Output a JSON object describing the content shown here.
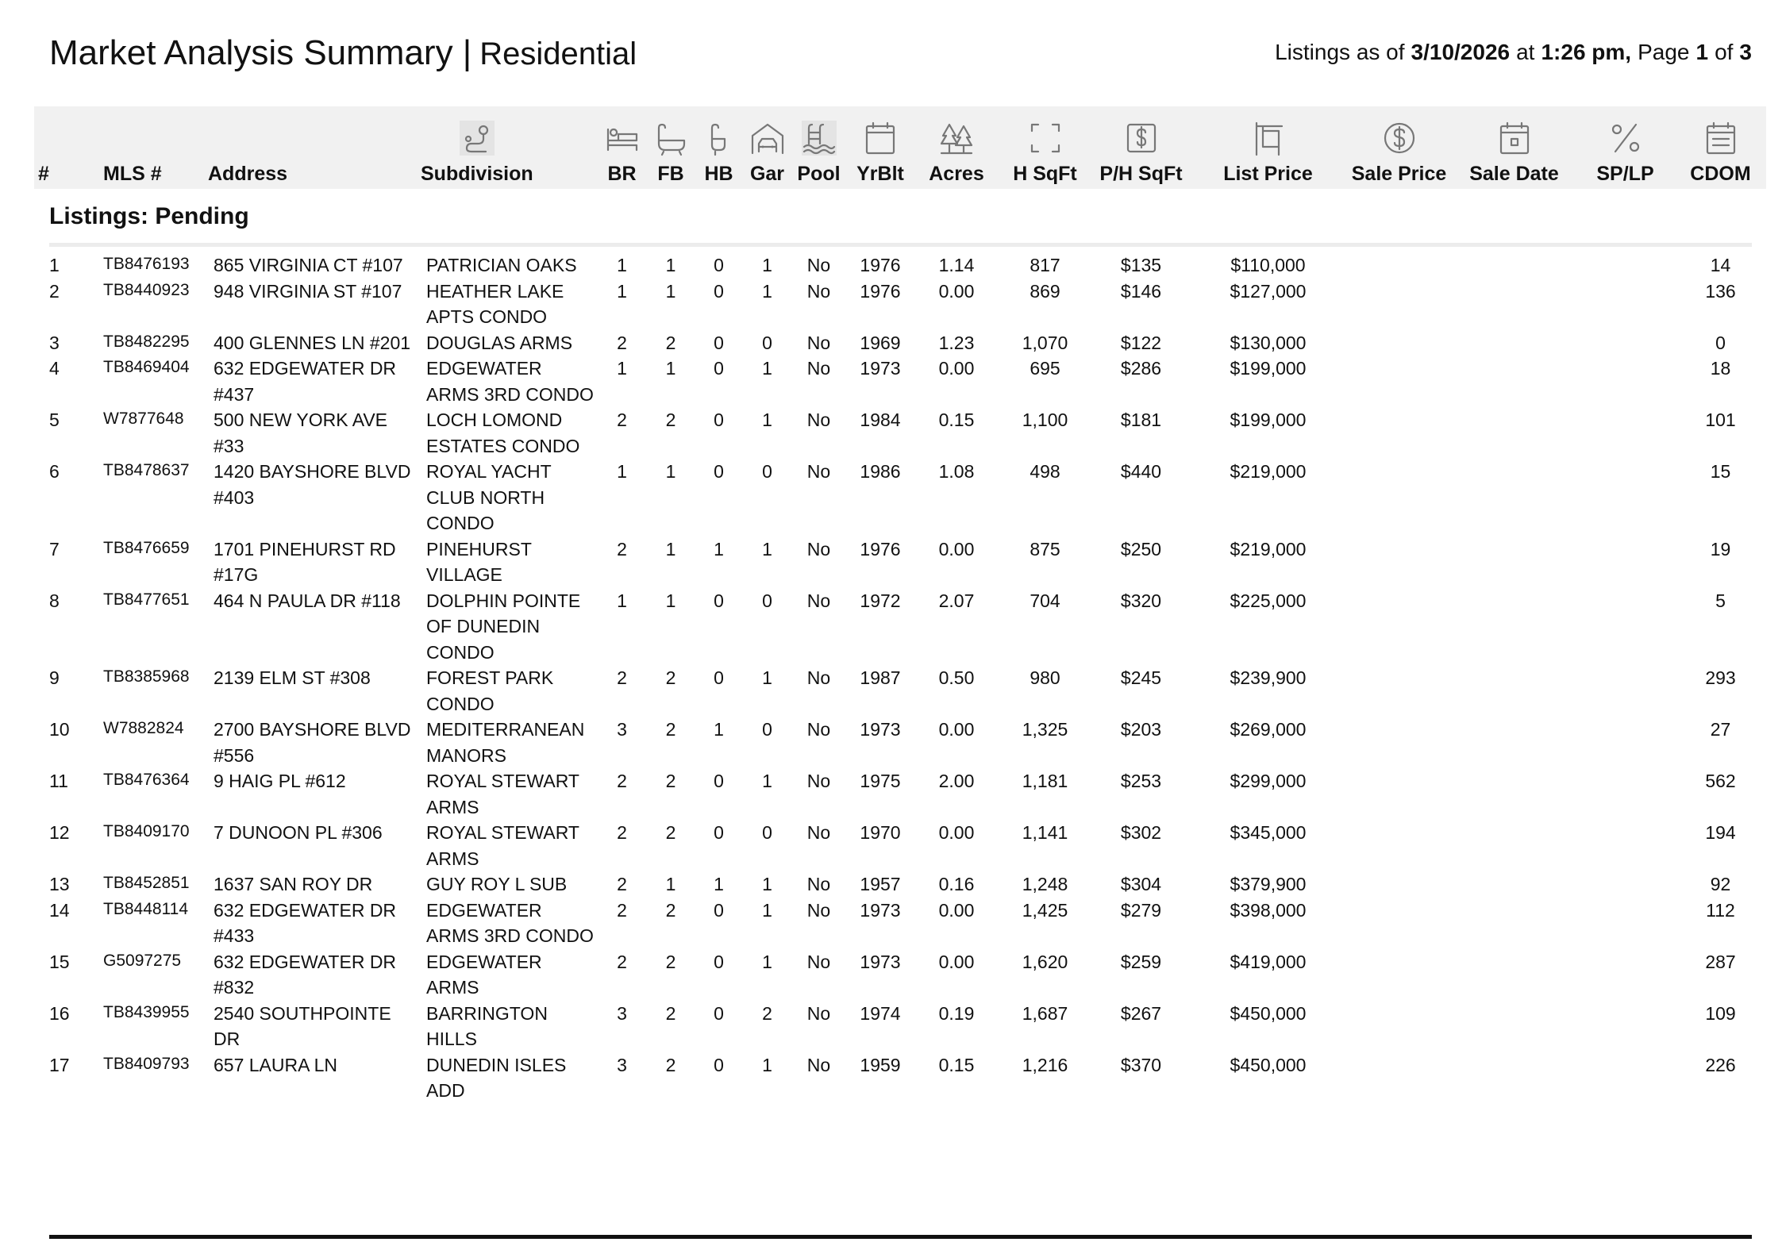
{
  "header": {
    "title": "Market Analysis Summary |",
    "subtitle": "Residential",
    "status": [
      "Listings as of",
      "3/10/2026",
      "at",
      "1:26 pm,",
      "Page",
      "1",
      "of",
      "3"
    ],
    "status_bold": [
      false,
      true,
      false,
      true,
      false,
      true,
      false,
      true
    ]
  },
  "table": {
    "columns": [
      "#",
      "MLS #",
      "Address",
      "Subdivision",
      "BR",
      "FB",
      "HB",
      "Gar",
      "Pool",
      "YrBlt",
      "Acres",
      "H SqFt",
      "P/H SqFt",
      "List Price",
      "Sale Price",
      "Sale Date",
      "SP/LP",
      "CDOM"
    ],
    "section": "Listings: Pending",
    "rows": [
      [
        "1",
        "TB8476193",
        "865 VIRGINIA CT #107",
        "PATRICIAN OAKS",
        "1",
        "1",
        "0",
        "1",
        "No",
        "1976",
        "1.14",
        "817",
        "$135",
        "$110,000",
        "14"
      ],
      [
        "2",
        "TB8440923",
        "948 VIRGINIA ST #107",
        "HEATHER LAKE APTS CONDO",
        "1",
        "1",
        "0",
        "1",
        "No",
        "1976",
        "0.00",
        "869",
        "$146",
        "$127,000",
        "136"
      ],
      [
        "3",
        "TB8482295",
        "400 GLENNES LN #201",
        "DOUGLAS ARMS",
        "2",
        "2",
        "0",
        "0",
        "No",
        "1969",
        "1.23",
        "1,070",
        "$122",
        "$130,000",
        "0"
      ],
      [
        "4",
        "TB8469404",
        "632 EDGEWATER DR #437",
        "EDGEWATER ARMS 3RD CONDO",
        "1",
        "1",
        "0",
        "1",
        "No",
        "1973",
        "0.00",
        "695",
        "$286",
        "$199,000",
        "18"
      ],
      [
        "5",
        "W7877648",
        "500 NEW YORK AVE #33",
        "LOCH LOMOND ESTATES CONDO",
        "2",
        "2",
        "0",
        "1",
        "No",
        "1984",
        "0.15",
        "1,100",
        "$181",
        "$199,000",
        "101"
      ],
      [
        "6",
        "TB8478637",
        "1420 BAYSHORE BLVD #403",
        "ROYAL YACHT CLUB NORTH CONDO",
        "1",
        "1",
        "0",
        "0",
        "No",
        "1986",
        "1.08",
        "498",
        "$440",
        "$219,000",
        "15"
      ],
      [
        "7",
        "TB8476659",
        "1701 PINEHURST RD #17G",
        "PINEHURST VILLAGE",
        "2",
        "1",
        "1",
        "1",
        "No",
        "1976",
        "0.00",
        "875",
        "$250",
        "$219,000",
        "19"
      ],
      [
        "8",
        "TB8477651",
        "464 N PAULA DR #118",
        "DOLPHIN POINTE OF DUNEDIN CONDO",
        "1",
        "1",
        "0",
        "0",
        "No",
        "1972",
        "2.07",
        "704",
        "$320",
        "$225,000",
        "5"
      ],
      [
        "9",
        "TB8385968",
        "2139 ELM ST #308",
        "FOREST PARK CONDO",
        "2",
        "2",
        "0",
        "1",
        "No",
        "1987",
        "0.50",
        "980",
        "$245",
        "$239,900",
        "293"
      ],
      [
        "10",
        "W7882824",
        "2700 BAYSHORE BLVD #556",
        "MEDITERRANEAN MANORS",
        "3",
        "2",
        "1",
        "0",
        "No",
        "1973",
        "0.00",
        "1,325",
        "$203",
        "$269,000",
        "27"
      ],
      [
        "11",
        "TB8476364",
        "9 HAIG PL #612",
        "ROYAL STEWART ARMS",
        "2",
        "2",
        "0",
        "1",
        "No",
        "1975",
        "2.00",
        "1,181",
        "$253",
        "$299,000",
        "562"
      ],
      [
        "12",
        "TB8409170",
        "7 DUNOON PL #306",
        "ROYAL STEWART ARMS",
        "2",
        "2",
        "0",
        "0",
        "No",
        "1970",
        "0.00",
        "1,141",
        "$302",
        "$345,000",
        "194"
      ],
      [
        "13",
        "TB8452851",
        "1637 SAN ROY DR",
        "GUY ROY L SUB",
        "2",
        "1",
        "1",
        "1",
        "No",
        "1957",
        "0.16",
        "1,248",
        "$304",
        "$379,900",
        "92"
      ],
      [
        "14",
        "TB8448114",
        "632 EDGEWATER DR #433",
        "EDGEWATER ARMS 3RD CONDO",
        "2",
        "2",
        "0",
        "1",
        "No",
        "1973",
        "0.00",
        "1,425",
        "$279",
        "$398,000",
        "112"
      ],
      [
        "15",
        "G5097275",
        "632 EDGEWATER DR #832",
        "EDGEWATER ARMS",
        "2",
        "2",
        "0",
        "1",
        "No",
        "1973",
        "0.00",
        "1,620",
        "$259",
        "$419,000",
        "287"
      ],
      [
        "16",
        "TB8439955",
        "2540 SOUTHPOINTE DR",
        "BARRINGTON HILLS",
        "3",
        "2",
        "0",
        "2",
        "No",
        "1974",
        "0.19",
        "1,687",
        "$267",
        "$450,000",
        "109"
      ],
      [
        "17",
        "TB8409793",
        "657 LAURA LN",
        "DUNEDIN ISLES ADD",
        "3",
        "2",
        "0",
        "1",
        "No",
        "1959",
        "0.15",
        "1,216",
        "$370",
        "$450,000",
        "226"
      ]
    ]
  }
}
